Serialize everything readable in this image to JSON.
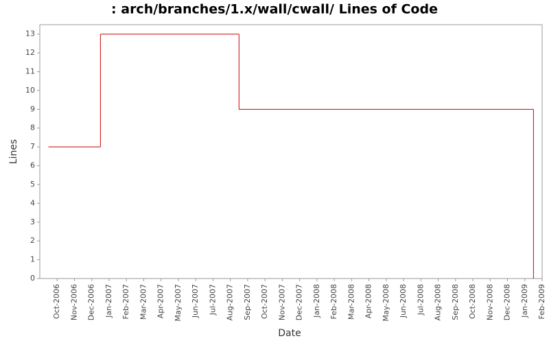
{
  "chart_data": {
    "type": "step",
    "title": ": arch/branches/1.x/wall/cwall/ Lines of Code",
    "x_label": "Date",
    "y_label": "Lines",
    "step": "post",
    "grid": false,
    "series": [
      {
        "name": "Lines",
        "color": "#cc0000",
        "x": [
          "2006-09",
          "2006-12",
          "2007-08",
          "2009-01"
        ],
        "values": [
          7,
          13,
          9,
          0
        ]
      }
    ],
    "xlim": [
      "2006-09",
      "2009-02"
    ],
    "xticks": [
      {
        "value": "2006-10",
        "label": "Oct-2006"
      },
      {
        "value": "2006-11",
        "label": "Nov-2006"
      },
      {
        "value": "2006-12",
        "label": "Dec-2006"
      },
      {
        "value": "2007-01",
        "label": "Jan-2007"
      },
      {
        "value": "2007-02",
        "label": "Feb-2007"
      },
      {
        "value": "2007-03",
        "label": "Mar-2007"
      },
      {
        "value": "2007-04",
        "label": "Apr-2007"
      },
      {
        "value": "2007-05",
        "label": "May-2007"
      },
      {
        "value": "2007-06",
        "label": "Jun-2007"
      },
      {
        "value": "2007-07",
        "label": "Jul-2007"
      },
      {
        "value": "2007-08",
        "label": "Aug-2007"
      },
      {
        "value": "2007-09",
        "label": "Sep-2007"
      },
      {
        "value": "2007-10",
        "label": "Oct-2007"
      },
      {
        "value": "2007-11",
        "label": "Nov-2007"
      },
      {
        "value": "2007-12",
        "label": "Dec-2007"
      },
      {
        "value": "2008-01",
        "label": "Jan-2008"
      },
      {
        "value": "2008-02",
        "label": "Feb-2008"
      },
      {
        "value": "2008-03",
        "label": "Mar-2008"
      },
      {
        "value": "2008-04",
        "label": "Apr-2008"
      },
      {
        "value": "2008-05",
        "label": "May-2008"
      },
      {
        "value": "2008-06",
        "label": "Jun-2008"
      },
      {
        "value": "2008-07",
        "label": "Jul-2008"
      },
      {
        "value": "2008-08",
        "label": "Aug-2008"
      },
      {
        "value": "2008-09",
        "label": "Sep-2008"
      },
      {
        "value": "2008-10",
        "label": "Oct-2008"
      },
      {
        "value": "2008-11",
        "label": "Nov-2008"
      },
      {
        "value": "2008-12",
        "label": "Dec-2008"
      },
      {
        "value": "2009-01",
        "label": "Jan-2009"
      },
      {
        "value": "2009-02",
        "label": "Feb-2009"
      }
    ],
    "ylim": [
      0,
      13.5
    ],
    "yticks": [
      0,
      1,
      2,
      3,
      4,
      5,
      6,
      7,
      8,
      9,
      10,
      11,
      12,
      13
    ]
  }
}
